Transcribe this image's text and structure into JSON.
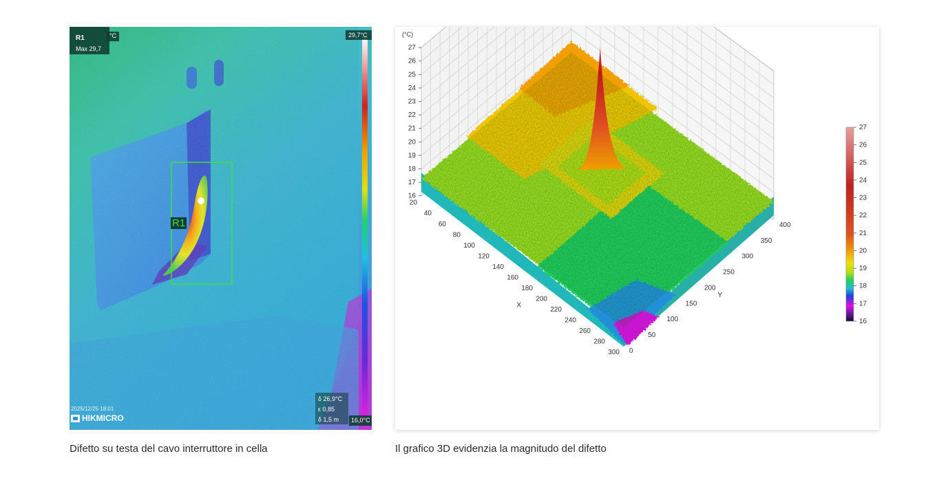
{
  "thermal_image": {
    "roi_label": "R1",
    "roi_unit": "°C",
    "roi_max": "Max 29,7",
    "scale_top": "29,7°C",
    "scale_bottom": "16,0°C",
    "roi_box_label": "R1",
    "timestamp": "2025/12/25 18:01",
    "params": [
      "δ 26,9°C",
      "ε 0,85",
      "δ 1,5 m"
    ],
    "brand": "HIKMICRO"
  },
  "captions": {
    "left": "Difetto su testa del cavo interruttore in cella",
    "right": "Il grafico 3D evidenzia la magnitudo del difetto"
  },
  "chart_data": {
    "type": "surface3d",
    "title": "",
    "z_unit_label": "(°C)",
    "z_ticks": [
      "16",
      "17",
      "18",
      "19",
      "20",
      "21",
      "22",
      "23",
      "24",
      "25",
      "26",
      "27"
    ],
    "x_label": "X",
    "x_ticks": [
      "20",
      "40",
      "60",
      "80",
      "100",
      "120",
      "140",
      "160",
      "180",
      "200",
      "220",
      "240",
      "260",
      "280",
      "300"
    ],
    "y_label": "Y",
    "y_ticks": [
      "0",
      "50",
      "100",
      "150",
      "200",
      "250",
      "300",
      "350",
      "400"
    ],
    "colorbar_ticks": [
      "27",
      "26",
      "25",
      "24",
      "23",
      "22",
      "21",
      "20",
      "19",
      "18",
      "17",
      "16"
    ],
    "z_range": [
      16,
      27
    ],
    "x_range": [
      20,
      300
    ],
    "y_range": [
      0,
      400
    ],
    "peak": {
      "x": 150,
      "y": 230,
      "z": 26.8
    },
    "baseline_temperature": 17.3,
    "colormap": [
      "#1a0a30",
      "#6a1aa0",
      "#e010e0",
      "#2040e0",
      "#20c0d0",
      "#20d060",
      "#b0e010",
      "#f0e000",
      "#f0a000",
      "#e05020",
      "#c02020",
      "#e8a0a0"
    ]
  }
}
